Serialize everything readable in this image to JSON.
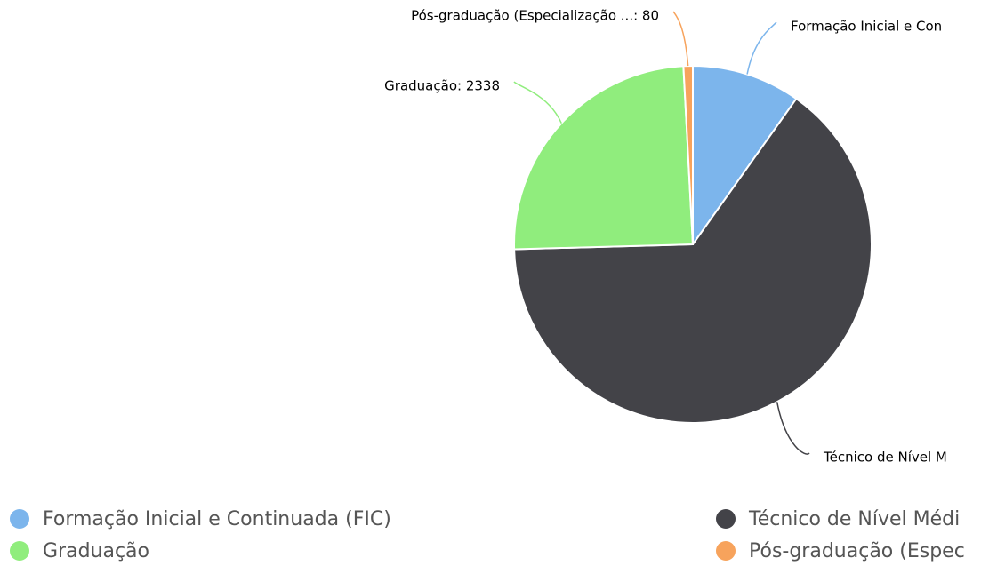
{
  "chart_data": {
    "type": "pie",
    "categories": [
      "Formação Inicial e Continuada (FIC)",
      "Técnico de Nível Médi",
      "Graduação",
      "Pós-graduação (Espec"
    ],
    "values": [
      934,
      6154,
      2338,
      80
    ],
    "data_labels": [
      "Formação Inicial e Con",
      "Técnico de Nível M",
      "Graduação: 2338",
      "Pós-graduação (Especialização ...: 80"
    ],
    "colors": [
      "#7cb5ec",
      "#434348",
      "#90ed7d",
      "#f7a35c"
    ],
    "legend": "bottom"
  }
}
